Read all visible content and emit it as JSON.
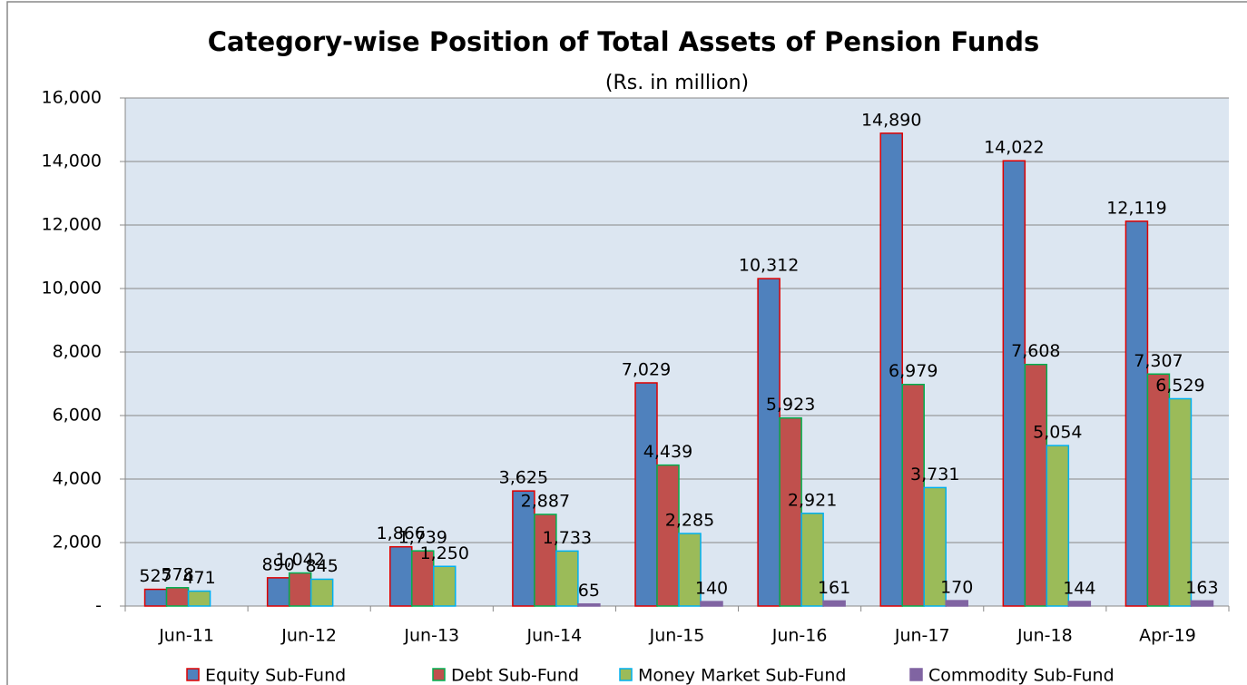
{
  "chart_data": {
    "type": "bar",
    "title": "Category-wise Position of Total Assets of Pension Funds",
    "subtitle": "(Rs. in million)",
    "categories": [
      "Jun-11",
      "Jun-12",
      "Jun-13",
      "Jun-14",
      "Jun-15",
      "Jun-16",
      "Jun-17",
      "Jun-18",
      "Apr-19"
    ],
    "series": [
      {
        "name": "Equity Sub-Fund",
        "color": "#4f81bd",
        "border": "#e00000",
        "values": [
          527,
          890,
          1866,
          3625,
          7029,
          10312,
          14890,
          14022,
          12119
        ],
        "value_labels": [
          "527",
          "890",
          "1,866",
          "3,625",
          "7,029",
          "10,312",
          "14,890",
          "14,022",
          "12,119"
        ]
      },
      {
        "name": "Debt Sub-Fund",
        "color": "#c0504d",
        "border": "#00b050",
        "values": [
          578,
          1042,
          1739,
          2887,
          4439,
          5923,
          6979,
          7608,
          7307
        ],
        "value_labels": [
          "578",
          "1,042",
          "1,739",
          "2,887",
          "4,439",
          "5,923",
          "6,979",
          "7,608",
          "7,307"
        ]
      },
      {
        "name": "Money Market Sub-Fund",
        "color": "#9bbb59",
        "border": "#00b0f0",
        "values": [
          471,
          845,
          1250,
          1733,
          2285,
          2921,
          3731,
          5054,
          6529
        ],
        "value_labels": [
          "471",
          "845",
          "1,250",
          "1,733",
          "2,285",
          "2,921",
          "3,731",
          "5,054",
          "6,529"
        ]
      },
      {
        "name": "Commodity Sub-Fund",
        "color": "#8064a2",
        "border": "#8064a2",
        "values": [
          null,
          null,
          null,
          65,
          140,
          161,
          170,
          144,
          163
        ],
        "value_labels": [
          null,
          null,
          null,
          "65",
          "140",
          "161",
          "170",
          "144",
          "163"
        ]
      }
    ],
    "ylim": [
      0,
      16000
    ],
    "yticks": [
      {
        "value": 0,
        "label": "-"
      },
      {
        "value": 2000,
        "label": "2,000"
      },
      {
        "value": 4000,
        "label": "4,000"
      },
      {
        "value": 6000,
        "label": "6,000"
      },
      {
        "value": 8000,
        "label": "8,000"
      },
      {
        "value": 10000,
        "label": "10,000"
      },
      {
        "value": 12000,
        "label": "12,000"
      },
      {
        "value": 14000,
        "label": "14,000"
      },
      {
        "value": 16000,
        "label": "16,000"
      }
    ],
    "grid": true,
    "legend": "bottom"
  }
}
